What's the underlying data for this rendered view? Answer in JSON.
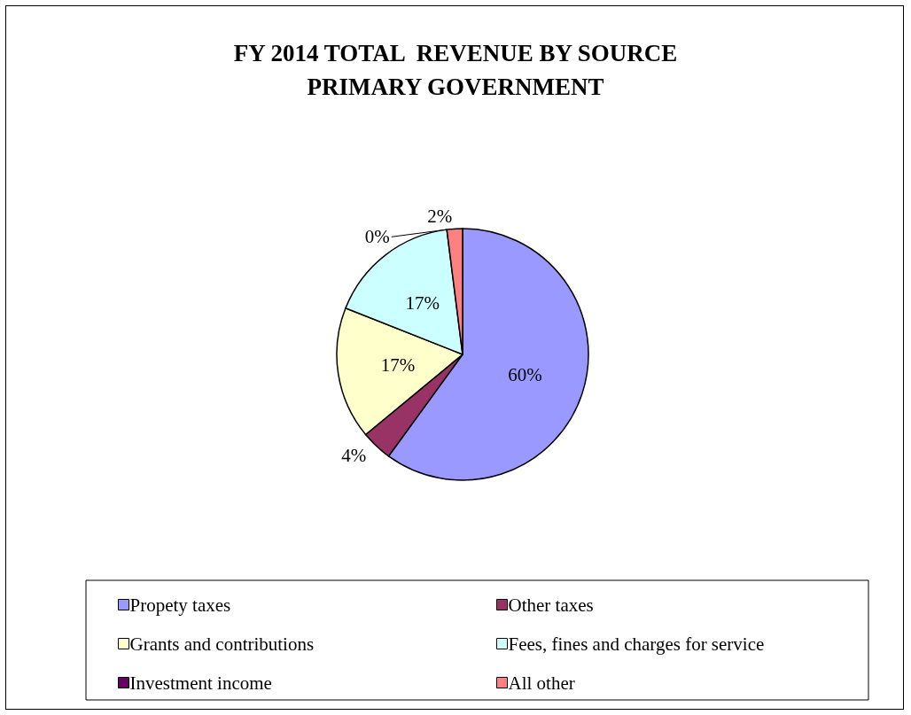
{
  "chart_data": {
    "type": "pie",
    "title": "FY 2014 TOTAL  REVENUE BY SOURCE\nPRIMARY GOVERNMENT",
    "categories": [
      "Propety taxes",
      "Other taxes",
      "Grants and contributions",
      "Fees, fines and charges for service",
      "Investment income",
      "All other"
    ],
    "values": [
      60,
      4,
      17,
      17,
      0,
      2
    ],
    "colors": [
      "#9999ff",
      "#993366",
      "#ffffcc",
      "#ccffff",
      "#660066",
      "#ff8080"
    ],
    "value_labels": [
      "60%",
      "4%",
      "17%",
      "17%",
      "0%",
      "2%"
    ],
    "legend": "bottom"
  }
}
